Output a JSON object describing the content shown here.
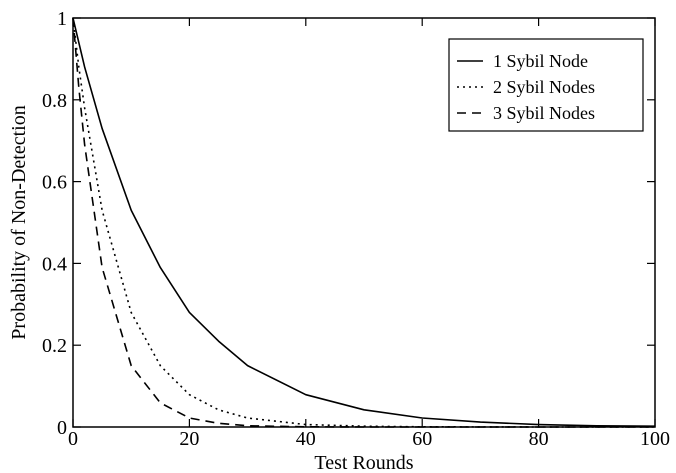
{
  "chart_data": {
    "type": "line",
    "xlabel": "Test Rounds",
    "ylabel": "Probability of Non-Detection",
    "xlim": [
      0,
      100
    ],
    "ylim": [
      0,
      1
    ],
    "xticks": [
      0,
      20,
      40,
      60,
      80,
      100
    ],
    "yticks": [
      0,
      0.2,
      0.4,
      0.6,
      0.8,
      1
    ],
    "xtick_labels": [
      "0",
      "20",
      "40",
      "60",
      "80",
      "100"
    ],
    "ytick_labels": [
      "0",
      "0.2",
      "0.4",
      "0.6",
      "0.8",
      "1"
    ],
    "grid": false,
    "legend_position": "top-right",
    "series": [
      {
        "name": "1 Sybil Node",
        "style": "solid",
        "x": [
          0,
          1,
          2,
          5,
          10,
          15,
          20,
          25,
          30,
          40,
          50,
          60,
          70,
          80,
          90,
          100
        ],
        "y": [
          1.0,
          0.94,
          0.88,
          0.73,
          0.53,
          0.39,
          0.28,
          0.21,
          0.15,
          0.079,
          0.042,
          0.022,
          0.012,
          0.006,
          0.003,
          0.002
        ]
      },
      {
        "name": "2 Sybil Nodes",
        "style": "dotted",
        "x": [
          0,
          1,
          2,
          5,
          10,
          15,
          20,
          25,
          30,
          40,
          50,
          60,
          80,
          100
        ],
        "y": [
          1.0,
          0.88,
          0.78,
          0.53,
          0.28,
          0.15,
          0.079,
          0.042,
          0.022,
          0.006,
          0.002,
          0.0005,
          0.0,
          0.0
        ]
      },
      {
        "name": "3 Sybil Nodes",
        "style": "dashed",
        "x": [
          0,
          1,
          2,
          5,
          10,
          15,
          20,
          25,
          30,
          40,
          50,
          60,
          80,
          100
        ],
        "y": [
          1.0,
          0.83,
          0.69,
          0.39,
          0.15,
          0.059,
          0.022,
          0.009,
          0.003,
          0.0005,
          0.0,
          0.0,
          0.0,
          0.0
        ]
      }
    ]
  }
}
